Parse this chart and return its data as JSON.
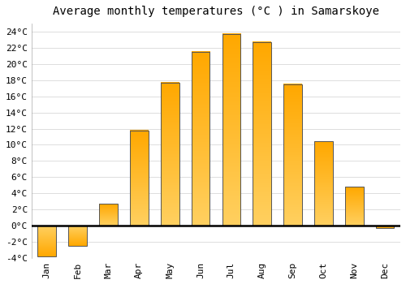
{
  "title": "Average monthly temperatures (°C ) in Samarskoye",
  "months": [
    "Jan",
    "Feb",
    "Mar",
    "Apr",
    "May",
    "Jun",
    "Jul",
    "Aug",
    "Sep",
    "Oct",
    "Nov",
    "Dec"
  ],
  "temperatures": [
    -3.8,
    -2.5,
    2.7,
    11.8,
    17.7,
    21.5,
    23.7,
    22.7,
    17.5,
    10.4,
    4.8,
    -0.3
  ],
  "bar_color_light": "#FFD060",
  "bar_color_dark": "#FFA000",
  "bar_edge_color": "#555555",
  "ylim": [
    -4,
    25
  ],
  "yticks": [
    -4,
    -2,
    0,
    2,
    4,
    6,
    8,
    10,
    12,
    14,
    16,
    18,
    20,
    22,
    24
  ],
  "ytick_labels": [
    "-4°C",
    "-2°C",
    "0°C",
    "2°C",
    "4°C",
    "6°C",
    "8°C",
    "10°C",
    "12°C",
    "14°C",
    "16°C",
    "18°C",
    "20°C",
    "22°C",
    "24°C"
  ],
  "background_color": "#ffffff",
  "plot_bg_color": "#ffffff",
  "grid_color": "#dddddd",
  "zero_line_color": "#000000",
  "title_fontsize": 10,
  "tick_fontsize": 8,
  "bar_width": 0.6
}
